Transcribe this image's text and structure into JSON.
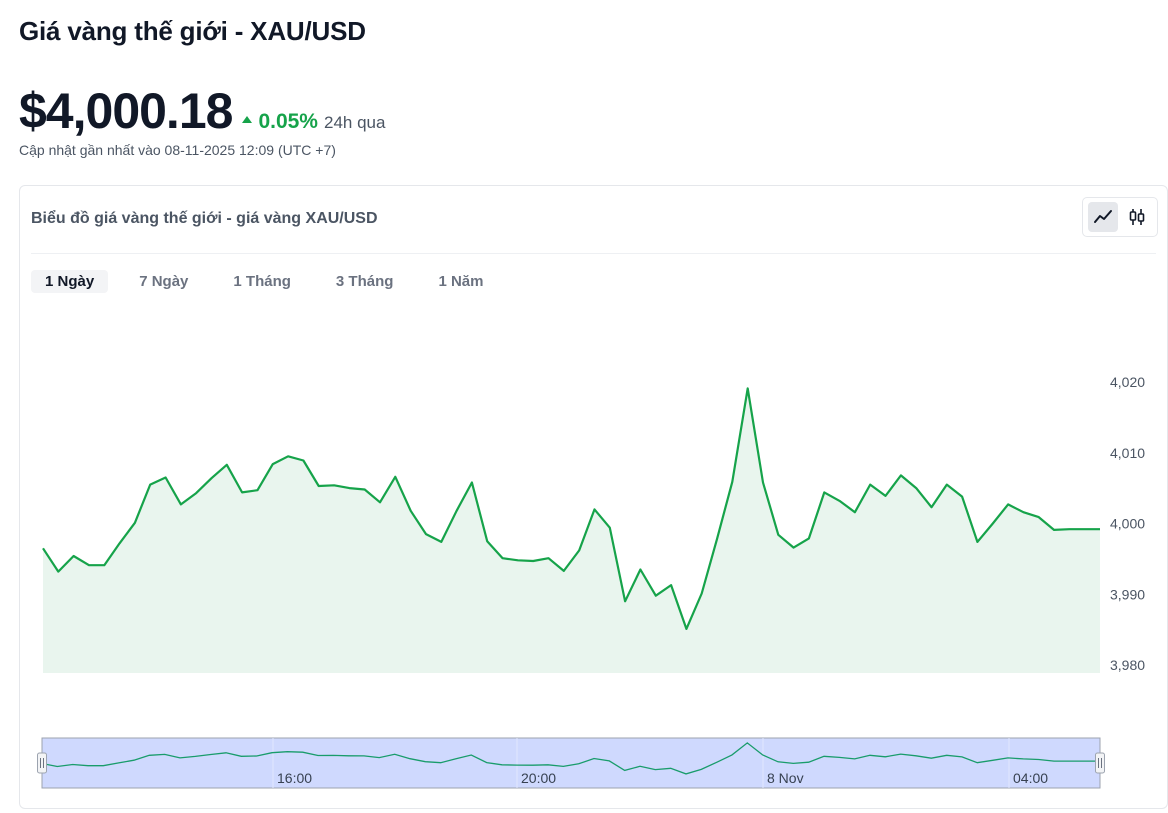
{
  "page": {
    "title": "Giá vàng thế giới - XAU/USD",
    "price": "$4,000.18",
    "change_pct": "0.05%",
    "change_period": "24h qua",
    "updated": "Cập nhật gần nhất vào 08-11-2025 12:09 (UTC +7)"
  },
  "card": {
    "title": "Biểu đồ giá vàng thế giới - giá vàng XAU/USD",
    "toggle": [
      {
        "icon": "line-chart-icon",
        "active": true
      },
      {
        "icon": "candlestick-icon",
        "active": false
      }
    ],
    "tabs": [
      {
        "label": "1 Ngày",
        "active": true
      },
      {
        "label": "7 Ngày",
        "active": false
      },
      {
        "label": "1 Tháng",
        "active": false
      },
      {
        "label": "3 Tháng",
        "active": false
      },
      {
        "label": "1 Năm",
        "active": false
      }
    ]
  },
  "colors": {
    "line": "#16a34a",
    "area": "#e9f5ee",
    "positive": "#16a34a",
    "navigator_fill": "#c7d2fe",
    "navigator_line": "#199c6b"
  },
  "chart_data": {
    "type": "area",
    "series": [
      {
        "values": [
          3996.5,
          3993.2,
          3995.4,
          3994.1,
          3994.1,
          3997.2,
          4000.1,
          4005.5,
          4006.5,
          4002.7,
          4004.3,
          4006.4,
          4008.3,
          4004.4,
          4004.7,
          4008.4,
          4009.5,
          4008.9,
          4005.3,
          4005.4,
          4005.0,
          4004.8,
          4003.0,
          4006.6,
          4001.8,
          3998.5,
          3997.4,
          4001.8,
          4005.8,
          3997.5,
          3995.1,
          3994.8,
          3994.7,
          3995.1,
          3993.3,
          3996.2,
          4002.0,
          3999.4,
          3989.0,
          3993.5,
          3989.8,
          3991.3,
          3985.1,
          3990.1,
          3997.8,
          4005.9,
          4019.1,
          4005.8,
          3998.4,
          3996.6,
          3997.9,
          4004.4,
          4003.2,
          4001.6,
          4005.5,
          4003.9,
          4006.8,
          4005.0,
          4002.3,
          4005.5,
          4003.8,
          3997.4,
          4000.0,
          4002.7,
          4001.6,
          4000.9,
          3999.1,
          3999.2,
          3999.2,
          3999.2
        ]
      }
    ],
    "ylim": [
      3980,
      4020
    ],
    "y_ticks": [
      "4,020",
      "4,010",
      "4,000",
      "3,990",
      "3,980"
    ],
    "y_tick_values": [
      4020,
      4010,
      4000,
      3990,
      3980
    ],
    "navigator_x_ticks": [
      "16:00",
      "20:00",
      "8 Nov",
      "04:00"
    ],
    "grid": false
  }
}
